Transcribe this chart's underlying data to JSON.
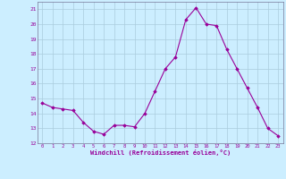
{
  "x": [
    0,
    1,
    2,
    3,
    4,
    5,
    6,
    7,
    8,
    9,
    10,
    11,
    12,
    13,
    14,
    15,
    16,
    17,
    18,
    19,
    20,
    21,
    22,
    23
  ],
  "y": [
    14.7,
    14.4,
    14.3,
    14.2,
    13.4,
    12.8,
    12.6,
    13.2,
    13.2,
    13.1,
    14.0,
    15.5,
    17.0,
    17.8,
    20.3,
    21.1,
    20.0,
    19.9,
    18.3,
    17.0,
    15.7,
    14.4,
    13.0,
    12.5
  ],
  "line_color": "#990099",
  "marker": "D",
  "marker_size": 1.8,
  "bg_color": "#cceeff",
  "grid_color": "#aaccdd",
  "xlabel": "Windchill (Refroidissement éolien,°C)",
  "xlabel_color": "#990099",
  "tick_color": "#990099",
  "ylim": [
    12,
    21.5
  ],
  "xlim": [
    -0.5,
    23.5
  ],
  "yticks": [
    12,
    13,
    14,
    15,
    16,
    17,
    18,
    19,
    20,
    21
  ],
  "xticks": [
    0,
    1,
    2,
    3,
    4,
    5,
    6,
    7,
    8,
    9,
    10,
    11,
    12,
    13,
    14,
    15,
    16,
    17,
    18,
    19,
    20,
    21,
    22,
    23
  ]
}
